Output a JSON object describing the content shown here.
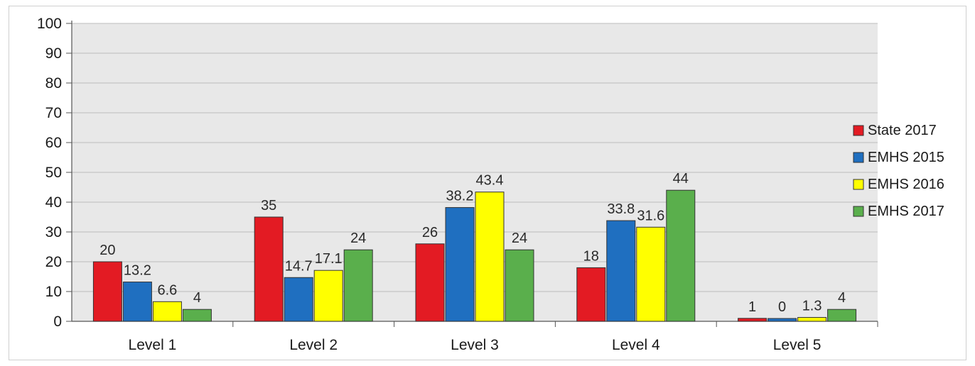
{
  "chart_data": {
    "type": "bar",
    "title": "",
    "xlabel": "",
    "ylabel": "",
    "categories": [
      "Level 1",
      "Level 2",
      "Level 3",
      "Level 4",
      "Level 5"
    ],
    "series": [
      {
        "name": "State 2017",
        "values": [
          20,
          35,
          26,
          18,
          1
        ],
        "labels": [
          "20",
          "35",
          "26",
          "18",
          "1"
        ],
        "color": "#e31b23"
      },
      {
        "name": "EMHS 2015",
        "values": [
          13.2,
          14.7,
          38.2,
          33.8,
          0
        ],
        "labels": [
          "13.2",
          "14.7",
          "38.2",
          "33.8",
          "0"
        ],
        "color": "#1f6fc0"
      },
      {
        "name": "EMHS 2016",
        "values": [
          6.6,
          17.1,
          43.4,
          31.6,
          1.3
        ],
        "labels": [
          "6.6",
          "17.1",
          "43.4",
          "31.6",
          "1.3"
        ],
        "color": "#ffff00"
      },
      {
        "name": "EMHS 2017",
        "values": [
          4,
          24,
          24,
          44,
          4
        ],
        "labels": [
          "4",
          "24",
          "24",
          "44",
          "4"
        ],
        "color": "#5aaf4c"
      }
    ],
    "ylim": [
      0,
      100
    ],
    "yticks": [
      "0",
      "10",
      "20",
      "30",
      "40",
      "50",
      "60",
      "70",
      "80",
      "90",
      "100"
    ],
    "grid": true,
    "legend": "right",
    "plot_background": "#e8e8e8"
  }
}
